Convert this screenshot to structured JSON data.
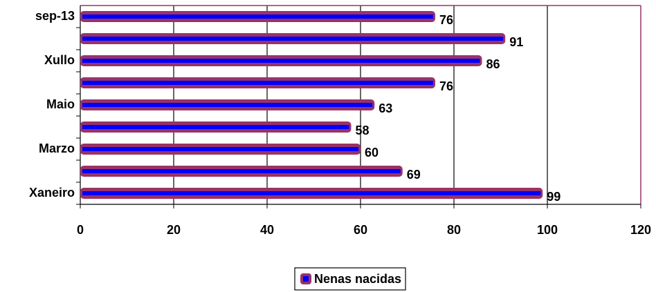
{
  "chart_data": {
    "type": "bar",
    "orientation": "horizontal",
    "categories": [
      "Xaneiro",
      null,
      "Marzo",
      null,
      "Maio",
      null,
      "Xullo",
      null,
      "sep-13"
    ],
    "series": [
      {
        "name": "Nenas nacidas",
        "color": "#993366",
        "inner_color": "#0000ff",
        "values": [
          99,
          69,
          60,
          58,
          63,
          76,
          86,
          91,
          76
        ]
      }
    ],
    "xlim": [
      0,
      120
    ],
    "xticks": [
      0,
      20,
      40,
      60,
      80,
      100,
      120
    ],
    "grid": true,
    "legend": "bottom"
  }
}
